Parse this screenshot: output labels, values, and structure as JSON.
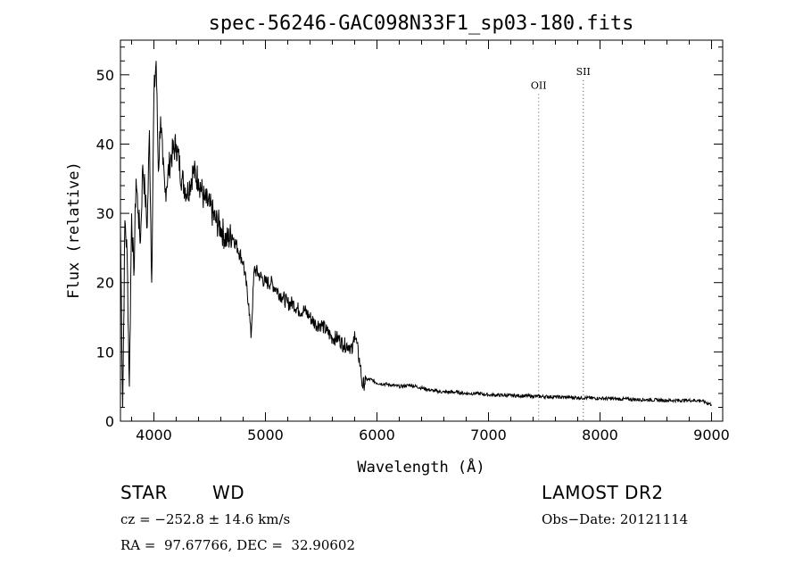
{
  "chart_data": {
    "type": "line",
    "title": "spec-56246-GAC098N33F1_sp03-180.fits",
    "xlabel": "Wavelength (Å)",
    "ylabel": "Flux (relative)",
    "xlim": [
      3700,
      9100
    ],
    "ylim": [
      0,
      55
    ],
    "x_ticks": [
      4000,
      5000,
      6000,
      7000,
      8000,
      9000
    ],
    "y_ticks": [
      0,
      10,
      20,
      30,
      40,
      50
    ],
    "grid": false,
    "line_color": "#000000",
    "series": [
      {
        "x": [
          3700,
          3720,
          3740,
          3760,
          3780,
          3800,
          3820,
          3840,
          3860,
          3880,
          3900,
          3920,
          3940,
          3960,
          3980,
          4000,
          4020,
          4040,
          4060,
          4080,
          4100,
          4150,
          4200,
          4250,
          4300,
          4350,
          4400,
          4450,
          4500,
          4550,
          4600,
          4650,
          4700,
          4750,
          4800,
          4850,
          4870,
          4900,
          4950,
          5000,
          5050,
          5100,
          5150,
          5200,
          5250,
          5300,
          5350,
          5400,
          5450,
          5500,
          5550,
          5600,
          5650,
          5700,
          5750,
          5780,
          5800,
          5850,
          5870,
          5900,
          5950,
          6000,
          6100,
          6200,
          6300,
          6400,
          6500,
          6600,
          6700,
          6800,
          6900,
          7000,
          7200,
          7400,
          7600,
          7800,
          8000,
          8200,
          8400,
          8600,
          8800,
          8900,
          9000
        ],
        "y": [
          28,
          2,
          29,
          24,
          5,
          30,
          21,
          35,
          30,
          26,
          37,
          33,
          28,
          42,
          20,
          47,
          52,
          36,
          44,
          37,
          33,
          38,
          40,
          35,
          33,
          36,
          35,
          32,
          31,
          29,
          28,
          26,
          27,
          25,
          23,
          17,
          12,
          22,
          21,
          20,
          20,
          19,
          18,
          17,
          17,
          16,
          16,
          15,
          14,
          14,
          13,
          12,
          12,
          11,
          11,
          10,
          13,
          8,
          5,
          6,
          6,
          5.5,
          5.3,
          5,
          5.2,
          4.8,
          4.4,
          4.2,
          4.2,
          4.0,
          4.0,
          3.8,
          3.7,
          3.6,
          3.5,
          3.4,
          3.3,
          3.2,
          3.1,
          3.0,
          3.0,
          3.0,
          2.4
        ]
      }
    ],
    "annotations": [
      {
        "label": "OII",
        "x": 7450,
        "label_y": 48
      },
      {
        "label": "SII",
        "x": 7850,
        "label_y": 50
      }
    ]
  },
  "footer": {
    "class_label": "STAR",
    "subclass_label": "WD",
    "cz": "cz = −252.8 ± 14.6 km/s",
    "coords": "RA =  97.67766, DEC =  32.90602",
    "survey": "LAMOST DR2",
    "obs_date": "Obs−Date: 20121114"
  }
}
